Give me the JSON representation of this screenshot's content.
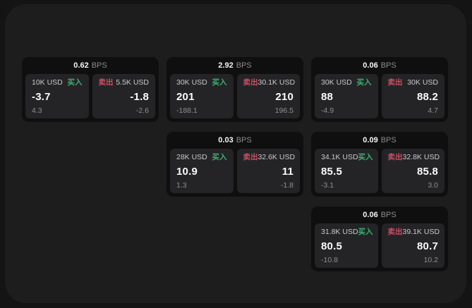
{
  "labels": {
    "bps_unit": "BPS",
    "buy": "买入",
    "sell": "卖出"
  },
  "colors": {
    "background": "#141414",
    "surface": "#1d1d1d",
    "card_bg": "#0f0f10",
    "panel_bg": "#242426",
    "buy_accent": "#3fae73",
    "sell_accent": "#cb4f63"
  },
  "cards": [
    {
      "bps": "0.62",
      "buy": {
        "amount": "10K USD",
        "value": "-3.7",
        "sub": "4.3"
      },
      "sell": {
        "amount": "5.5K USD",
        "value": "-1.8",
        "sub": "-2.6"
      }
    },
    {
      "bps": "2.92",
      "buy": {
        "amount": "30K USD",
        "value": "201",
        "sub": "-188.1"
      },
      "sell": {
        "amount": "30.1K USD",
        "value": "210",
        "sub": "196.5"
      }
    },
    {
      "bps": "0.06",
      "buy": {
        "amount": "30K USD",
        "value": "88",
        "sub": "-4.9"
      },
      "sell": {
        "amount": "30K USD",
        "value": "88.2",
        "sub": "4.7"
      }
    },
    {
      "bps": "0.03",
      "buy": {
        "amount": "28K USD",
        "value": "10.9",
        "sub": "1.3"
      },
      "sell": {
        "amount": "32.6K USD",
        "value": "11",
        "sub": "-1.8"
      }
    },
    {
      "bps": "0.09",
      "buy": {
        "amount": "34.1K USD",
        "value": "85.5",
        "sub": "-3.1"
      },
      "sell": {
        "amount": "32.8K USD",
        "value": "85.8",
        "sub": "3.0"
      }
    },
    {
      "bps": "0.06",
      "buy": {
        "amount": "31.8K USD",
        "value": "80.5",
        "sub": "-10.8"
      },
      "sell": {
        "amount": "39.1K USD",
        "value": "80.7",
        "sub": "10.2"
      }
    }
  ]
}
